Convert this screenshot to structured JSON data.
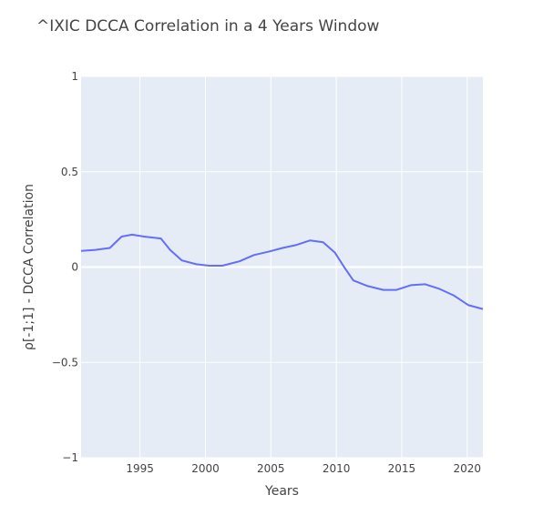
{
  "chart_data": {
    "type": "line",
    "title": "^IXIC DCCA Correlation in a 4 Years Window",
    "xlabel": "Years",
    "ylabel": "ρ[-1;1] - DCCA Correlation",
    "xlim": [
      1990.5,
      2021.2
    ],
    "ylim": [
      -1,
      1
    ],
    "x_ticks": [
      {
        "value": 1995,
        "label": "1995"
      },
      {
        "value": 2000,
        "label": "2000"
      },
      {
        "value": 2005,
        "label": "2005"
      },
      {
        "value": 2010,
        "label": "2010"
      },
      {
        "value": 2015,
        "label": "2015"
      },
      {
        "value": 2020,
        "label": "2020"
      }
    ],
    "y_ticks": [
      {
        "value": 1,
        "label": "1"
      },
      {
        "value": 0.5,
        "label": "0.5"
      },
      {
        "value": 0,
        "label": "0"
      },
      {
        "value": -0.5,
        "label": "−0.5"
      },
      {
        "value": -1,
        "label": "−1"
      }
    ],
    "grid": true,
    "colors": {
      "plot_bg": "#e5ecf6",
      "grid": "#ffffff",
      "line": "#636efa",
      "text": "#444444"
    },
    "series": [
      {
        "name": "",
        "x": [
          1990.5,
          1991.6,
          1992.7,
          1993.6,
          1994.4,
          1995.3,
          1996.6,
          1997.3,
          1998.2,
          1999.3,
          2000.3,
          2001.3,
          2002.6,
          2003.7,
          2004.8,
          2005.9,
          2006.9,
          2008.0,
          2009.0,
          2009.9,
          2010.6,
          2011.3,
          2012.4,
          2013.6,
          2014.6,
          2015.7,
          2016.8,
          2017.9,
          2019.0,
          2020.1,
          2021.2
        ],
        "y": [
          0.085,
          0.09,
          0.1,
          0.16,
          0.17,
          0.16,
          0.15,
          0.09,
          0.035,
          0.015,
          0.007,
          0.007,
          0.03,
          0.063,
          0.08,
          0.1,
          0.115,
          0.14,
          0.13,
          0.075,
          0.0,
          -0.07,
          -0.1,
          -0.12,
          -0.12,
          -0.095,
          -0.09,
          -0.115,
          -0.15,
          -0.2,
          -0.22
        ]
      }
    ]
  }
}
